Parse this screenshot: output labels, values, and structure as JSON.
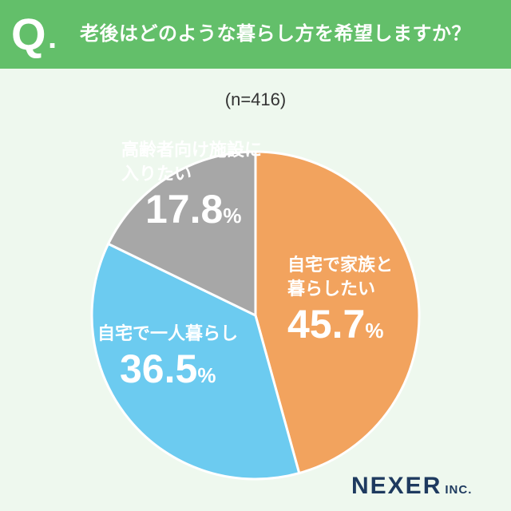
{
  "header": {
    "q_mark": "Q",
    "q_dot": ".",
    "question": "老後はどのような暮らし方を希望しますか？"
  },
  "sample_size": "(n=416)",
  "chart_data": {
    "type": "pie",
    "slices": [
      {
        "name_lines": [
          "自宅で家族と",
          "暮らしたい"
        ],
        "value": 45.7,
        "value_text": "45.7",
        "color": "#f2a35e"
      },
      {
        "name_lines": [
          "自宅で一人暮らし"
        ],
        "value": 36.5,
        "value_text": "36.5",
        "color": "#6ccbf0"
      },
      {
        "name_lines": [
          "高齢者向け施設に",
          "入りたい"
        ],
        "value": 17.8,
        "value_text": "17.8",
        "color": "#a7a7a7"
      }
    ],
    "unit": "%"
  },
  "logo": {
    "main": "NEXER",
    "sub": "INC."
  },
  "colors": {
    "header_bg": "#63bf6a",
    "page_bg": "#eef8ee",
    "logo": "#1e3a5f"
  }
}
